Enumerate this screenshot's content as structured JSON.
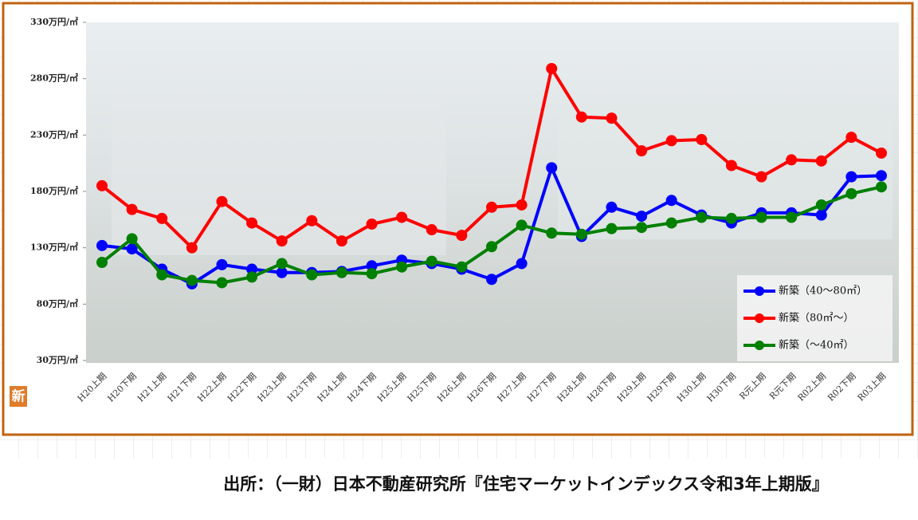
{
  "chart_data": {
    "type": "line",
    "categories": [
      "H20上期",
      "H20下期",
      "H21上期",
      "H21下期",
      "H22上期",
      "H22下期",
      "H23上期",
      "H23下期",
      "H24上期",
      "H24下期",
      "H25上期",
      "H25下期",
      "H26上期",
      "H26下期",
      "H27上期",
      "H27下期",
      "H28上期",
      "H28下期",
      "H29上期",
      "H29下期",
      "H30上期",
      "H30下期",
      "R元上期",
      "R元下期",
      "R02上期",
      "R02下期",
      "R03上期"
    ],
    "series": [
      {
        "name": "新築（40～80㎡）",
        "color": "#0000ff",
        "values": [
          132,
          129,
          111,
          98,
          115,
          111,
          108,
          108,
          109,
          114,
          119,
          116,
          111,
          102,
          116,
          201,
          140,
          166,
          158,
          172,
          159,
          152,
          161,
          161,
          159,
          193,
          194
        ]
      },
      {
        "name": "新築（80㎡～）",
        "color": "#ff0000",
        "values": [
          185,
          164,
          156,
          130,
          171,
          152,
          136,
          154,
          136,
          151,
          157,
          146,
          141,
          166,
          168,
          289,
          246,
          245,
          216,
          225,
          226,
          203,
          193,
          208,
          207,
          228,
          214
        ]
      },
      {
        "name": "新築（～40㎡）",
        "color": "#008000",
        "values": [
          117,
          138,
          106,
          101,
          99,
          104,
          116,
          106,
          108,
          107,
          113,
          118,
          113,
          131,
          150,
          143,
          142,
          147,
          148,
          152,
          157,
          156,
          157,
          157,
          168,
          178,
          184
        ]
      }
    ],
    "ylim": [
      30,
      330
    ],
    "yticks": [
      {
        "value": 30,
        "label": "30万円/㎡"
      },
      {
        "value": 80,
        "label": "80万円/㎡"
      },
      {
        "value": 130,
        "label": "130万円/㎡"
      },
      {
        "value": 180,
        "label": "180万円/㎡"
      },
      {
        "value": 230,
        "label": "230万円/㎡"
      },
      {
        "value": 280,
        "label": "280万円/㎡"
      },
      {
        "value": 330,
        "label": "330万円/㎡"
      }
    ],
    "legend": "lower right"
  },
  "badge": "新",
  "source": "出所：（一財）日本不動産研究所『住宅マーケットインデックス令和3年上期版』"
}
